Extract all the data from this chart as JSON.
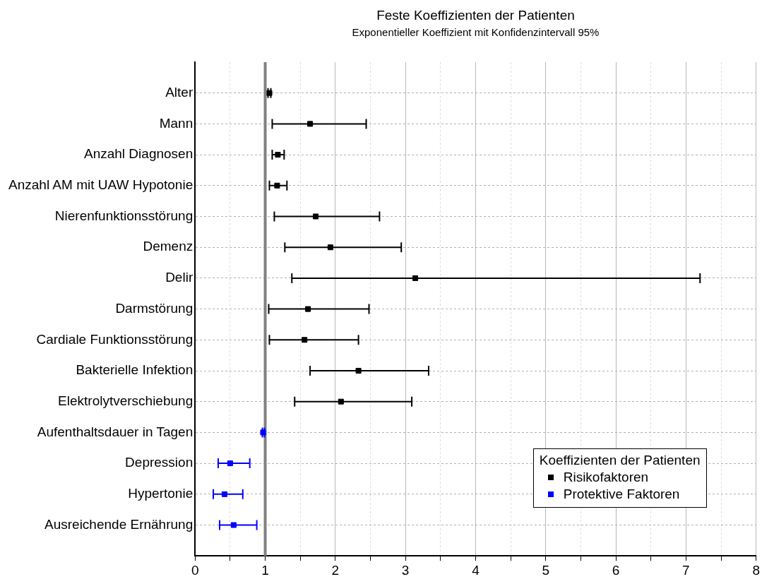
{
  "chart_data": {
    "type": "scatter",
    "orientation": "horizontal",
    "title": "Feste Koeffizienten der Patienten",
    "subtitle": "Exponentieller Koeffizient mit Konfidenzintervall 95%",
    "categories": [
      "Alter",
      "Mann",
      "Anzahl Diagnosen",
      "Anzahl AM mit UAW Hypotonie",
      "Nierenfunktionsstörung",
      "Demenz",
      "Delir",
      "Darmstörung",
      "Cardiale Funktionsstörung",
      "Bakterielle Infektion",
      "Elektrolytverschiebung",
      "Aufenthaltsdauer in Tagen",
      "Depression",
      "Hypertonie",
      "Ausreichende Ernährung"
    ],
    "series": [
      {
        "name": "Risikofaktoren",
        "color": "#000000",
        "values": [
          1.06,
          1.64,
          1.18,
          1.17,
          1.72,
          1.93,
          3.14,
          1.61,
          1.56,
          2.33,
          2.08,
          null,
          null,
          null,
          null
        ],
        "errors": [
          [
            1.04,
            1.08
          ],
          [
            1.1,
            2.44
          ],
          [
            1.1,
            1.27
          ],
          [
            1.06,
            1.31
          ],
          [
            1.13,
            2.63
          ],
          [
            1.28,
            2.94
          ],
          [
            1.38,
            7.2
          ],
          [
            1.05,
            2.48
          ],
          [
            1.06,
            2.33
          ],
          [
            1.64,
            3.33
          ],
          [
            1.42,
            3.09
          ],
          null,
          null,
          null,
          null
        ]
      },
      {
        "name": "Protektive Faktoren",
        "color": "#0000ff",
        "values": [
          null,
          null,
          null,
          null,
          null,
          null,
          null,
          null,
          null,
          null,
          null,
          0.97,
          0.5,
          0.42,
          0.55
        ],
        "errors": [
          null,
          null,
          null,
          null,
          null,
          null,
          null,
          null,
          null,
          null,
          null,
          [
            0.96,
            0.99
          ],
          [
            0.33,
            0.78
          ],
          [
            0.26,
            0.68
          ],
          [
            0.35,
            0.88
          ]
        ]
      }
    ],
    "xlim": [
      0,
      8
    ],
    "xticks": [
      0,
      {
        "value": 0.5,
        "label": null
      },
      1,
      {
        "value": 1.5,
        "label": null
      },
      2,
      {
        "value": 2.5,
        "label": null
      },
      3,
      {
        "value": 3.5,
        "label": null
      },
      4,
      {
        "value": 4.5,
        "label": null
      },
      5,
      {
        "value": 5.5,
        "label": null
      },
      6,
      {
        "value": 6.5,
        "label": null
      },
      7,
      {
        "value": 7.5,
        "label": null
      },
      8
    ],
    "ref_lines": [
      {
        "axis": "x",
        "value": 1,
        "color": "#808080"
      }
    ],
    "grid": true,
    "legend": "bottom right",
    "legend_title": "Koeffizienten der Patienten",
    "marker": "square"
  }
}
